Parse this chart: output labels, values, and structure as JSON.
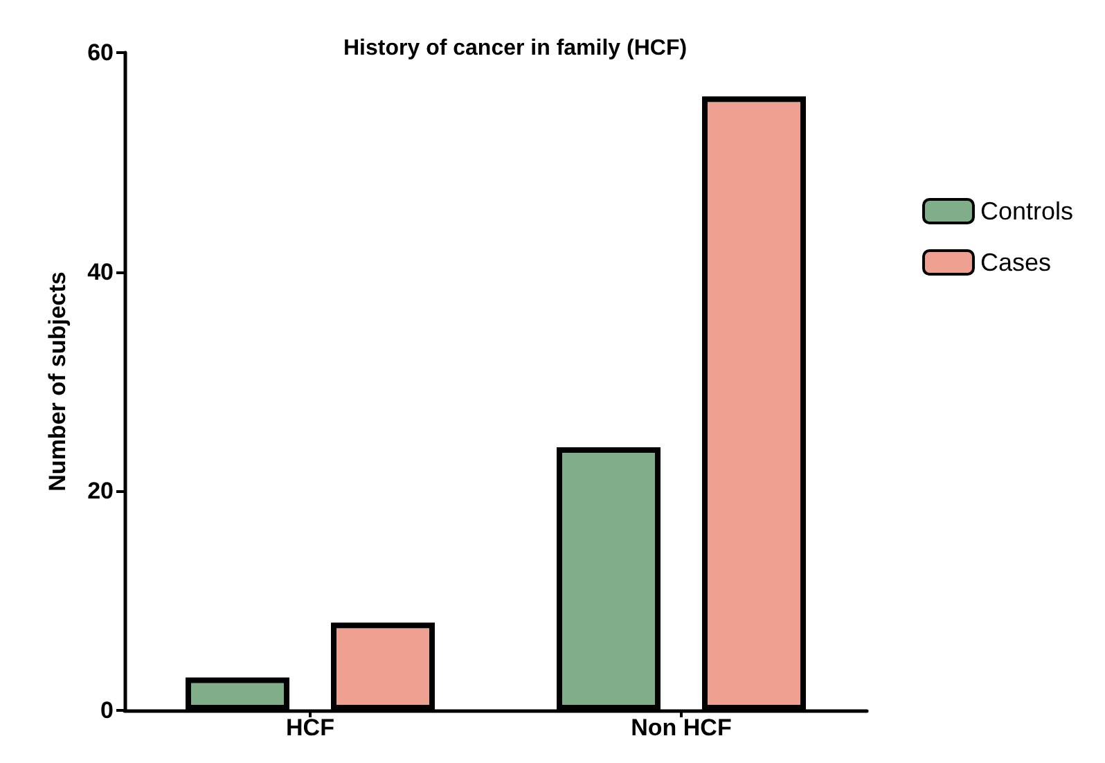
{
  "chart_data": {
    "type": "bar",
    "title": "History of cancer in family (HCF)",
    "ylabel": "Number of subjects",
    "categories": [
      "HCF",
      "Non HCF"
    ],
    "series": [
      {
        "name": "Controls",
        "color": "#7fae88",
        "values": [
          3,
          24
        ]
      },
      {
        "name": "Cases",
        "color": "#eea190",
        "values": [
          8,
          56
        ]
      }
    ],
    "ylim": [
      0,
      60
    ],
    "yticks": [
      0,
      20,
      40,
      60
    ],
    "grid": false,
    "legend": "right"
  }
}
